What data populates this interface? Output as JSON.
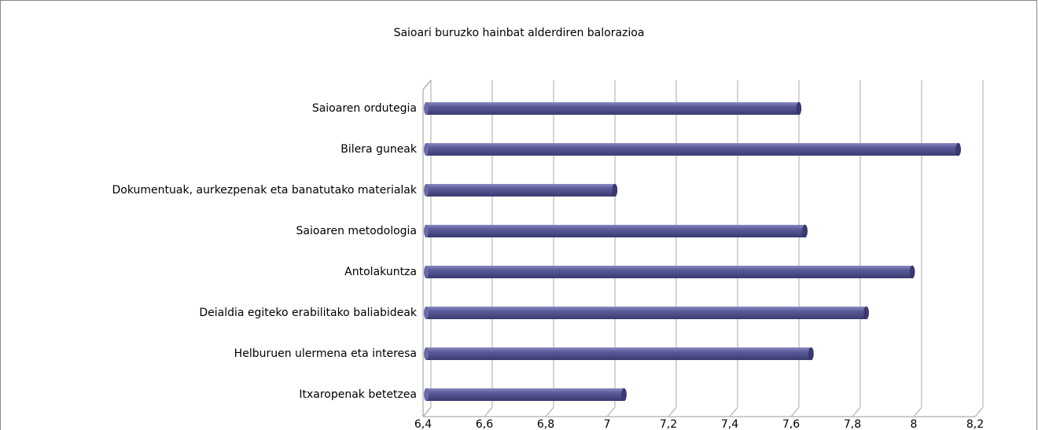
{
  "chart_data": {
    "type": "bar",
    "orientation": "horizontal",
    "title": "Saioari buruzko hainbat alderdiren balorazioa",
    "categories": [
      "Saioaren ordutegia",
      "Bilera guneak",
      "Dokumentuak, aurkezpenak eta banatutako materialak",
      "Saioaren metodologia",
      "Antolakuntza",
      "Deialdia egiteko erabilitako baliabideak",
      "Helburuen ulermena eta interesa",
      "Itxaropenak betetzea"
    ],
    "values": [
      7.61,
      8.13,
      7.01,
      7.63,
      7.98,
      7.83,
      7.65,
      7.04
    ],
    "color": "#5b5b9b",
    "xlim": [
      6.4,
      8.2
    ],
    "xticks": [
      {
        "value": 6.4,
        "label": "6,4"
      },
      {
        "value": 6.6,
        "label": "6,6"
      },
      {
        "value": 6.8,
        "label": "6,8"
      },
      7,
      {
        "value": 7.2,
        "label": "7,2"
      },
      {
        "value": 7.4,
        "label": "7,4"
      },
      {
        "value": 7.6,
        "label": "7,6"
      },
      {
        "value": 7.8,
        "label": "7,8"
      },
      8,
      {
        "value": 8.2,
        "label": "8,2"
      }
    ],
    "grid": true
  }
}
